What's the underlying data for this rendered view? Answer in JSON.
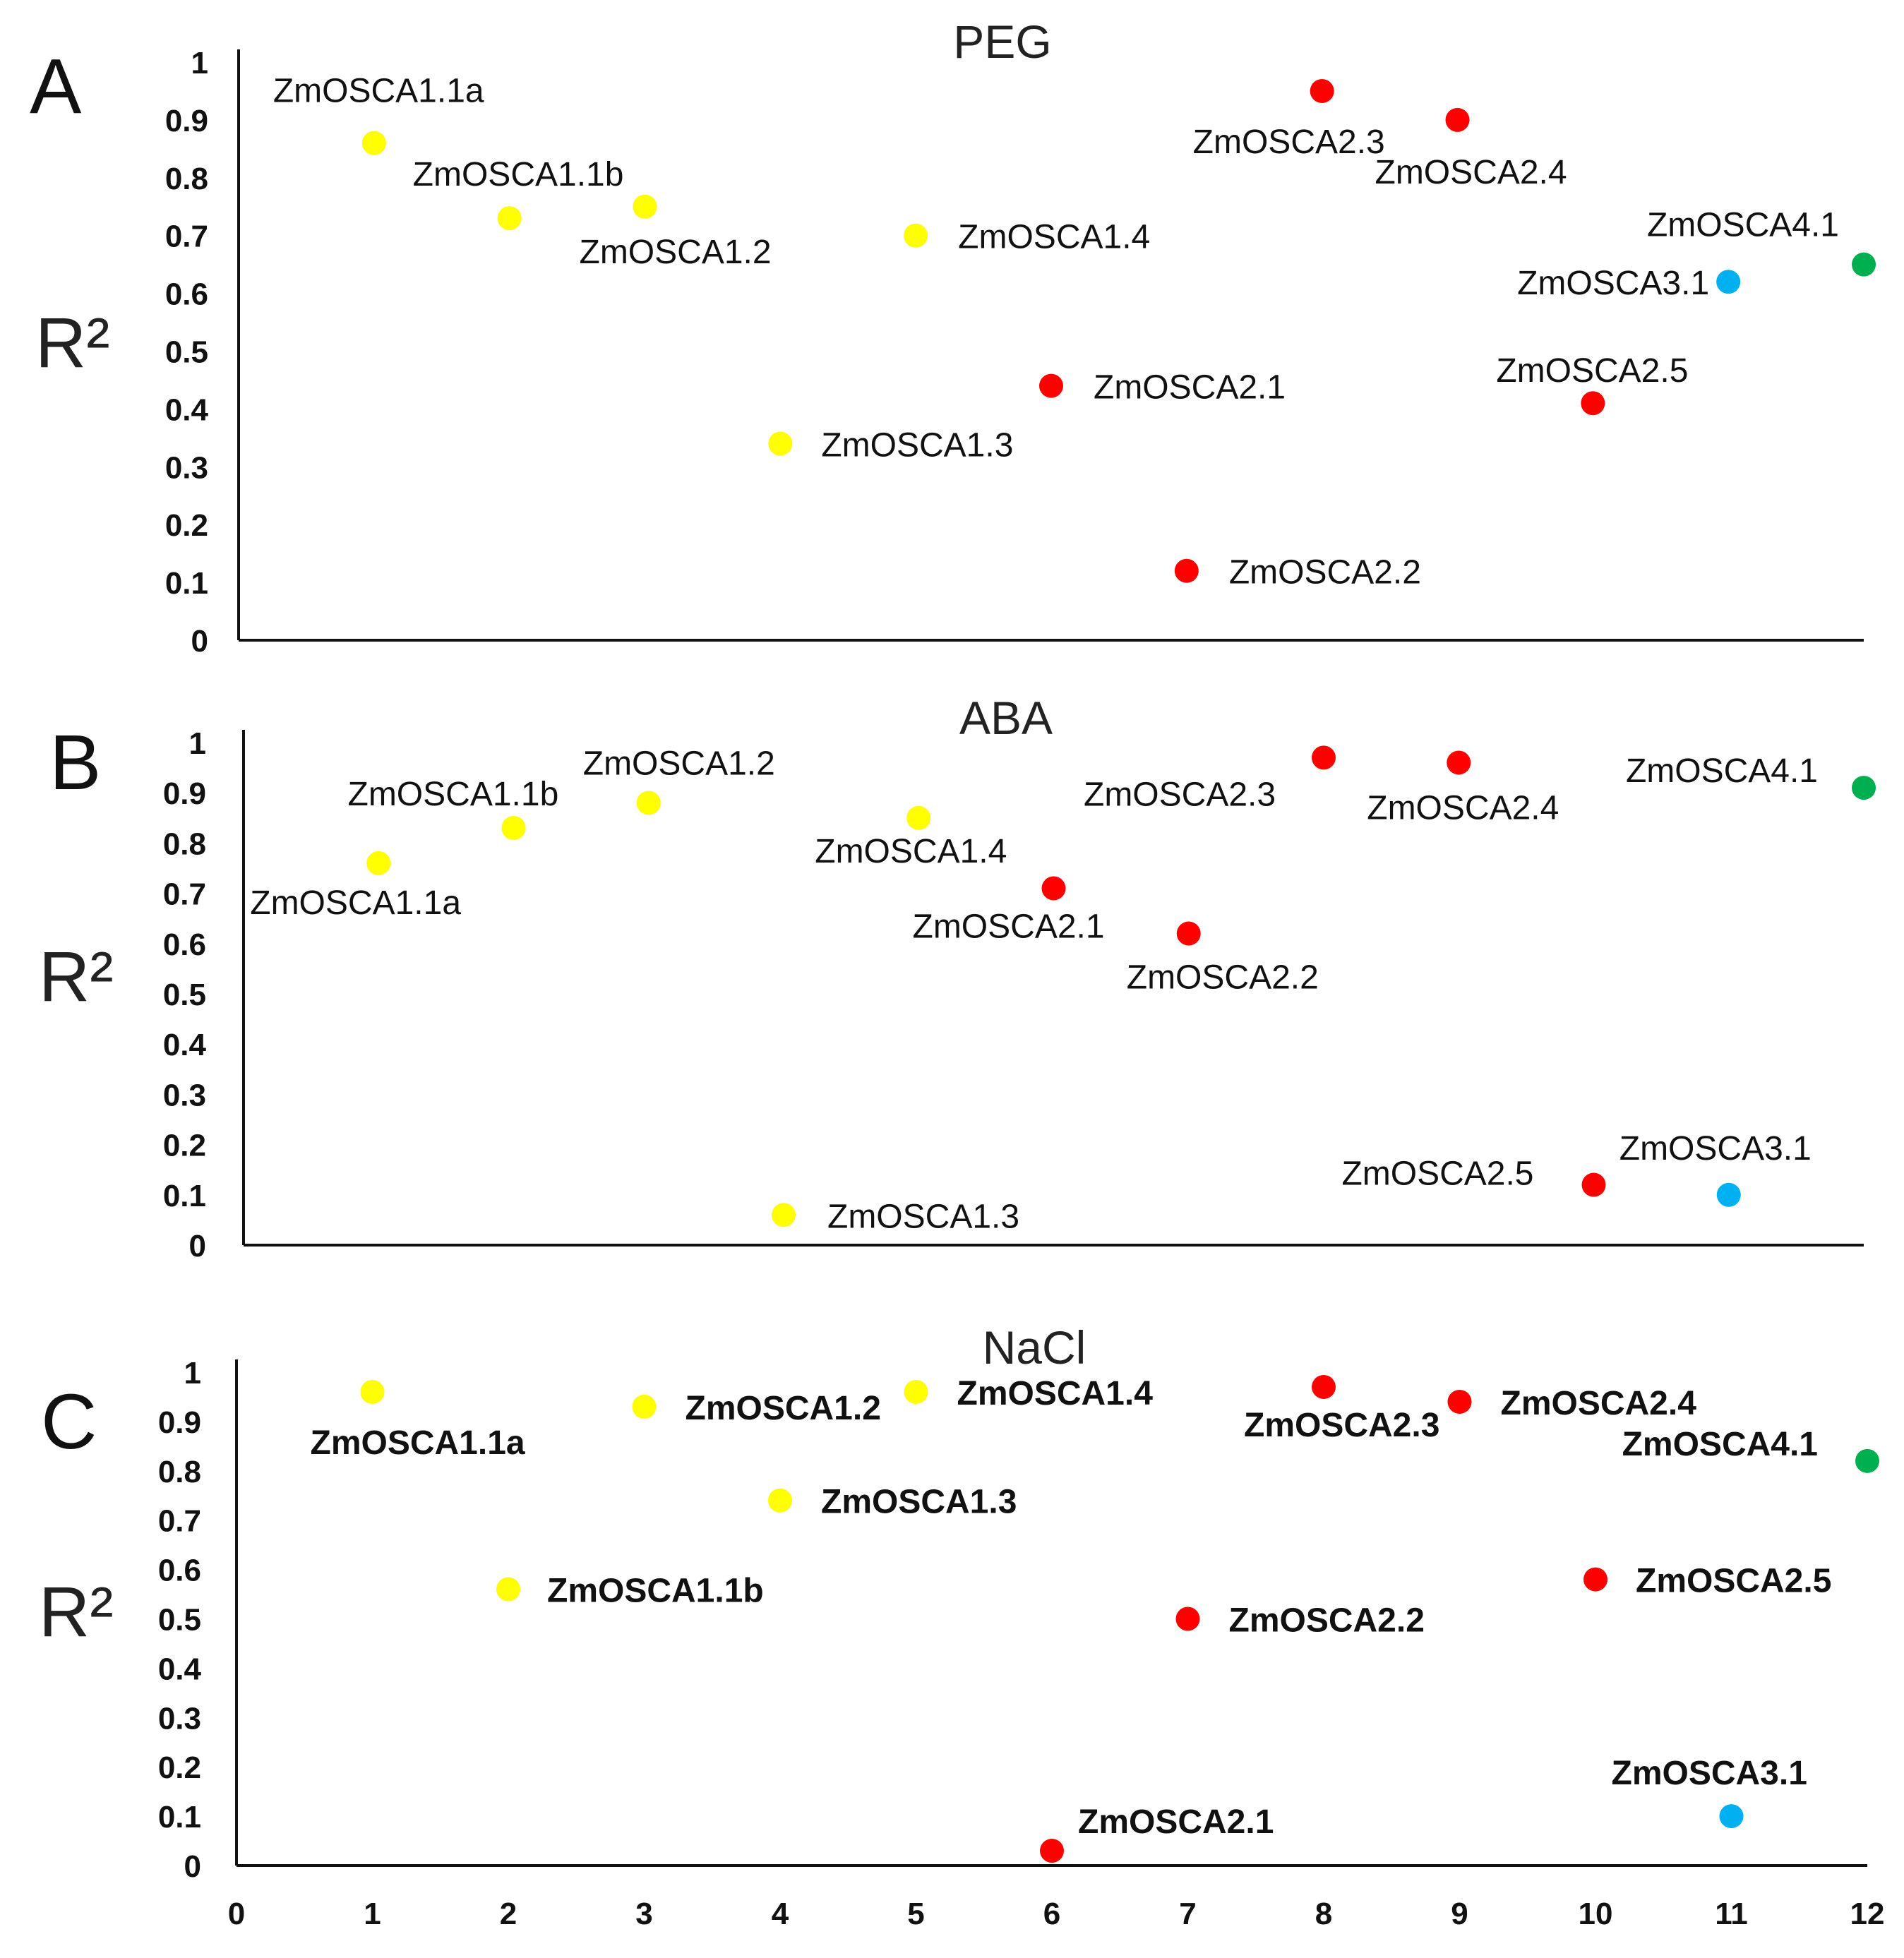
{
  "chart_data": [
    {
      "type": "scatter",
      "panel": "A",
      "title": "PEG",
      "ylabel": "R²",
      "xlim": [
        0,
        12
      ],
      "ylim": [
        0,
        1
      ],
      "yticks": [
        "0",
        "0.1",
        "0.2",
        "0.3",
        "0.4",
        "0.5",
        "0.6",
        "0.7",
        "0.8",
        "0.9",
        "1"
      ],
      "points": [
        {
          "name": "ZmOSCA1.1a",
          "x": 1,
          "y": 0.86,
          "color": "#ffff00"
        },
        {
          "name": "ZmOSCA1.1b",
          "x": 2,
          "y": 0.73,
          "color": "#ffff00"
        },
        {
          "name": "ZmOSCA1.2",
          "x": 3,
          "y": 0.75,
          "color": "#ffff00"
        },
        {
          "name": "ZmOSCA1.3",
          "x": 4,
          "y": 0.34,
          "color": "#ffff00"
        },
        {
          "name": "ZmOSCA1.4",
          "x": 5,
          "y": 0.7,
          "color": "#ffff00"
        },
        {
          "name": "ZmOSCA2.1",
          "x": 6,
          "y": 0.44,
          "color": "#ff0000"
        },
        {
          "name": "ZmOSCA2.2",
          "x": 7,
          "y": 0.12,
          "color": "#ff0000"
        },
        {
          "name": "ZmOSCA2.3",
          "x": 8,
          "y": 0.95,
          "color": "#ff0000"
        },
        {
          "name": "ZmOSCA2.4",
          "x": 9,
          "y": 0.9,
          "color": "#ff0000"
        },
        {
          "name": "ZmOSCA2.5",
          "x": 10,
          "y": 0.41,
          "color": "#ff0000"
        },
        {
          "name": "ZmOSCA3.1",
          "x": 11,
          "y": 0.62,
          "color": "#00b0f0"
        },
        {
          "name": "ZmOSCA4.1",
          "x": 12,
          "y": 0.65,
          "color": "#00b050"
        }
      ]
    },
    {
      "type": "scatter",
      "panel": "B",
      "title": "ABA",
      "ylabel": "R²",
      "xlim": [
        0,
        12
      ],
      "ylim": [
        0,
        1
      ],
      "yticks": [
        "0",
        "0.1",
        "0.2",
        "0.3",
        "0.4",
        "0.5",
        "0.6",
        "0.7",
        "0.8",
        "0.9",
        "1"
      ],
      "points": [
        {
          "name": "ZmOSCA1.1a",
          "x": 1,
          "y": 0.76,
          "color": "#ffff00"
        },
        {
          "name": "ZmOSCA1.1b",
          "x": 2,
          "y": 0.83,
          "color": "#ffff00"
        },
        {
          "name": "ZmOSCA1.2",
          "x": 3,
          "y": 0.88,
          "color": "#ffff00"
        },
        {
          "name": "ZmOSCA1.3",
          "x": 4,
          "y": 0.06,
          "color": "#ffff00"
        },
        {
          "name": "ZmOSCA1.4",
          "x": 5,
          "y": 0.85,
          "color": "#ffff00"
        },
        {
          "name": "ZmOSCA2.1",
          "x": 6,
          "y": 0.71,
          "color": "#ff0000"
        },
        {
          "name": "ZmOSCA2.2",
          "x": 7,
          "y": 0.62,
          "color": "#ff0000"
        },
        {
          "name": "ZmOSCA2.3",
          "x": 8,
          "y": 0.97,
          "color": "#ff0000"
        },
        {
          "name": "ZmOSCA2.4",
          "x": 9,
          "y": 0.96,
          "color": "#ff0000"
        },
        {
          "name": "ZmOSCA2.5",
          "x": 10,
          "y": 0.12,
          "color": "#ff0000"
        },
        {
          "name": "ZmOSCA3.1",
          "x": 11,
          "y": 0.1,
          "color": "#00b0f0"
        },
        {
          "name": "ZmOSCA4.1",
          "x": 12,
          "y": 0.91,
          "color": "#00b050"
        }
      ]
    },
    {
      "type": "scatter",
      "panel": "C",
      "title": "NaCl",
      "ylabel": "R²",
      "xlim": [
        0,
        12
      ],
      "ylim": [
        0,
        1
      ],
      "xticks": [
        "0",
        "1",
        "2",
        "3",
        "4",
        "5",
        "6",
        "7",
        "8",
        "9",
        "10",
        "11",
        "12"
      ],
      "yticks": [
        "0",
        "0.1",
        "0.2",
        "0.3",
        "0.4",
        "0.5",
        "0.6",
        "0.7",
        "0.8",
        "0.9",
        "1"
      ],
      "points": [
        {
          "name": "ZmOSCA1.1a",
          "x": 1,
          "y": 0.96,
          "color": "#ffff00"
        },
        {
          "name": "ZmOSCA1.1b",
          "x": 2,
          "y": 0.56,
          "color": "#ffff00"
        },
        {
          "name": "ZmOSCA1.2",
          "x": 3,
          "y": 0.93,
          "color": "#ffff00"
        },
        {
          "name": "ZmOSCA1.3",
          "x": 4,
          "y": 0.74,
          "color": "#ffff00"
        },
        {
          "name": "ZmOSCA1.4",
          "x": 5,
          "y": 0.96,
          "color": "#ffff00"
        },
        {
          "name": "ZmOSCA2.1",
          "x": 6,
          "y": 0.03,
          "color": "#ff0000"
        },
        {
          "name": "ZmOSCA2.2",
          "x": 7,
          "y": 0.5,
          "color": "#ff0000"
        },
        {
          "name": "ZmOSCA2.3",
          "x": 8,
          "y": 0.97,
          "color": "#ff0000"
        },
        {
          "name": "ZmOSCA2.4",
          "x": 9,
          "y": 0.94,
          "color": "#ff0000"
        },
        {
          "name": "ZmOSCA2.5",
          "x": 10,
          "y": 0.58,
          "color": "#ff0000"
        },
        {
          "name": "ZmOSCA3.1",
          "x": 11,
          "y": 0.1,
          "color": "#00b0f0"
        },
        {
          "name": "ZmOSCA4.1",
          "x": 12,
          "y": 0.82,
          "color": "#00b050"
        }
      ]
    }
  ]
}
